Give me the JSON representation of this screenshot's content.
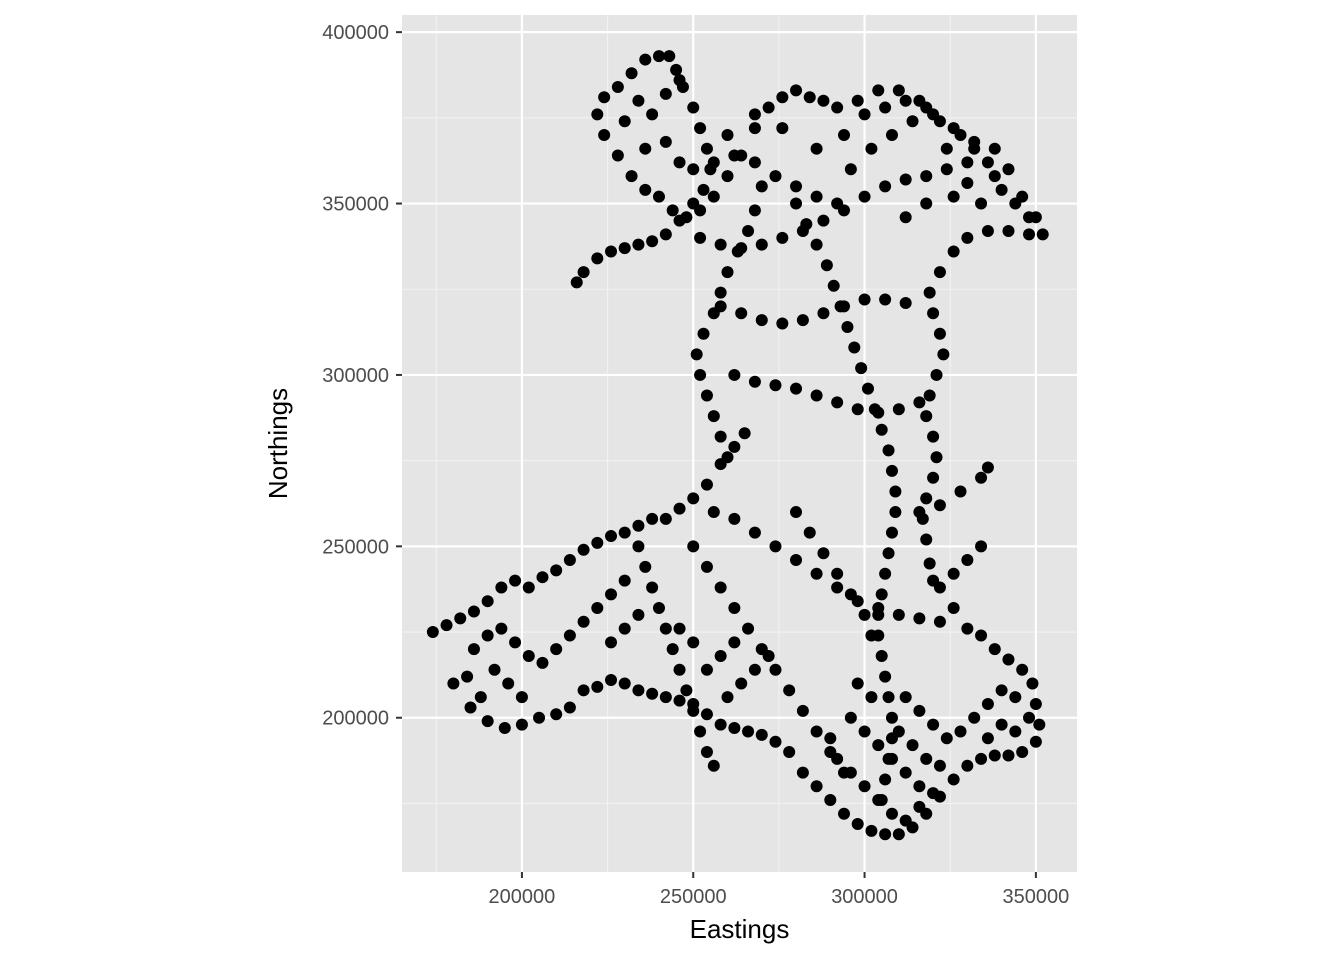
{
  "chart_data": {
    "type": "scatter",
    "title": "",
    "xlabel": "Eastings",
    "ylabel": "Northings",
    "xlim": [
      165000,
      362000
    ],
    "ylim": [
      155000,
      405000
    ],
    "x_ticks": [
      200000,
      250000,
      300000,
      350000
    ],
    "y_ticks": [
      200000,
      250000,
      300000,
      350000,
      400000
    ],
    "x_tick_labels": [
      "200000",
      "250000",
      "300000",
      "350000"
    ],
    "y_tick_labels": [
      "200000",
      "250000",
      "300000",
      "350000",
      "400000"
    ],
    "grid": true,
    "legend": "none",
    "colors": {
      "panel_background": "#e5e5e5",
      "grid_major": "#ffffff",
      "grid_minor": "#f2f2f2",
      "points": "#000000",
      "tick_label": "#4d4d4d",
      "axis_title": "#000000"
    },
    "points": [
      [
        174000,
        225000
      ],
      [
        178000,
        227000
      ],
      [
        182000,
        229000
      ],
      [
        186000,
        231000
      ],
      [
        190000,
        234000
      ],
      [
        194000,
        238000
      ],
      [
        198000,
        240000
      ],
      [
        202000,
        238000
      ],
      [
        206000,
        241000
      ],
      [
        210000,
        243000
      ],
      [
        214000,
        246000
      ],
      [
        218000,
        249000
      ],
      [
        222000,
        251000
      ],
      [
        226000,
        253000
      ],
      [
        230000,
        254000
      ],
      [
        234000,
        256000
      ],
      [
        238000,
        258000
      ],
      [
        242000,
        258000
      ],
      [
        246000,
        261000
      ],
      [
        250000,
        264000
      ],
      [
        254000,
        268000
      ],
      [
        258000,
        274000
      ],
      [
        262000,
        279000
      ],
      [
        265000,
        283000
      ],
      [
        180000,
        210000
      ],
      [
        185000,
        203000
      ],
      [
        190000,
        199000
      ],
      [
        195000,
        197000
      ],
      [
        200000,
        198000
      ],
      [
        205000,
        200000
      ],
      [
        210000,
        201000
      ],
      [
        214000,
        203000
      ],
      [
        218000,
        208000
      ],
      [
        222000,
        209000
      ],
      [
        226000,
        211000
      ],
      [
        230000,
        210000
      ],
      [
        234000,
        208000
      ],
      [
        238000,
        207000
      ],
      [
        242000,
        206000
      ],
      [
        246000,
        205000
      ],
      [
        250000,
        204000
      ],
      [
        254000,
        201000
      ],
      [
        258000,
        198000
      ],
      [
        262000,
        197000
      ],
      [
        266000,
        196000
      ],
      [
        270000,
        195000
      ],
      [
        274000,
        193000
      ],
      [
        278000,
        190000
      ],
      [
        282000,
        184000
      ],
      [
        286000,
        180000
      ],
      [
        290000,
        176000
      ],
      [
        294000,
        172000
      ],
      [
        298000,
        169000
      ],
      [
        302000,
        167000
      ],
      [
        306000,
        166000
      ],
      [
        310000,
        166000
      ],
      [
        314000,
        168000
      ],
      [
        318000,
        172000
      ],
      [
        322000,
        177000
      ],
      [
        326000,
        182000
      ],
      [
        330000,
        186000
      ],
      [
        334000,
        188000
      ],
      [
        338000,
        189000
      ],
      [
        342000,
        189000
      ],
      [
        346000,
        190000
      ],
      [
        350000,
        193000
      ],
      [
        351000,
        198000
      ],
      [
        350000,
        204000
      ],
      [
        349000,
        210000
      ],
      [
        346000,
        214000
      ],
      [
        342000,
        217000
      ],
      [
        338000,
        220000
      ],
      [
        334000,
        224000
      ],
      [
        330000,
        226000
      ],
      [
        326000,
        232000
      ],
      [
        322000,
        238000
      ],
      [
        319000,
        245000
      ],
      [
        318000,
        252000
      ],
      [
        317000,
        258000
      ],
      [
        318000,
        264000
      ],
      [
        320000,
        270000
      ],
      [
        321000,
        276000
      ],
      [
        320000,
        282000
      ],
      [
        318000,
        288000
      ],
      [
        319000,
        294000
      ],
      [
        321000,
        300000
      ],
      [
        323000,
        306000
      ],
      [
        322000,
        312000
      ],
      [
        320000,
        318000
      ],
      [
        319000,
        324000
      ],
      [
        322000,
        330000
      ],
      [
        326000,
        336000
      ],
      [
        330000,
        340000
      ],
      [
        336000,
        342000
      ],
      [
        342000,
        342000
      ],
      [
        348000,
        341000
      ],
      [
        352000,
        341000
      ],
      [
        348000,
        346000
      ],
      [
        344000,
        350000
      ],
      [
        340000,
        354000
      ],
      [
        338000,
        358000
      ],
      [
        336000,
        362000
      ],
      [
        332000,
        366000
      ],
      [
        328000,
        370000
      ],
      [
        322000,
        374000
      ],
      [
        316000,
        380000
      ],
      [
        310000,
        383000
      ],
      [
        304000,
        383000
      ],
      [
        298000,
        380000
      ],
      [
        292000,
        378000
      ],
      [
        288000,
        380000
      ],
      [
        284000,
        381000
      ],
      [
        280000,
        383000
      ],
      [
        276000,
        381000
      ],
      [
        272000,
        378000
      ],
      [
        268000,
        372000
      ],
      [
        264000,
        364000
      ],
      [
        260000,
        358000
      ],
      [
        256000,
        352000
      ],
      [
        252000,
        348000
      ],
      [
        248000,
        346000
      ],
      [
        244000,
        348000
      ],
      [
        240000,
        352000
      ],
      [
        236000,
        354000
      ],
      [
        232000,
        358000
      ],
      [
        228000,
        364000
      ],
      [
        224000,
        370000
      ],
      [
        222000,
        376000
      ],
      [
        224000,
        381000
      ],
      [
        228000,
        384000
      ],
      [
        232000,
        388000
      ],
      [
        236000,
        392000
      ],
      [
        240000,
        393000
      ],
      [
        243000,
        393000
      ],
      [
        245000,
        389000
      ],
      [
        247000,
        384000
      ],
      [
        250000,
        378000
      ],
      [
        252000,
        372000
      ],
      [
        254000,
        366000
      ],
      [
        255000,
        360000
      ],
      [
        253000,
        354000
      ],
      [
        250000,
        350000
      ],
      [
        246000,
        345000
      ],
      [
        242000,
        341000
      ],
      [
        238000,
        339000
      ],
      [
        234000,
        338000
      ],
      [
        230000,
        337000
      ],
      [
        226000,
        336000
      ],
      [
        222000,
        334000
      ],
      [
        218000,
        330000
      ],
      [
        216000,
        327000
      ],
      [
        252000,
        340000
      ],
      [
        258000,
        338000
      ],
      [
        264000,
        337000
      ],
      [
        270000,
        338000
      ],
      [
        276000,
        340000
      ],
      [
        282000,
        342000
      ],
      [
        288000,
        345000
      ],
      [
        294000,
        348000
      ],
      [
        300000,
        352000
      ],
      [
        306000,
        355000
      ],
      [
        312000,
        357000
      ],
      [
        318000,
        358000
      ],
      [
        324000,
        360000
      ],
      [
        330000,
        362000
      ],
      [
        250000,
        360000
      ],
      [
        256000,
        362000
      ],
      [
        262000,
        364000
      ],
      [
        268000,
        362000
      ],
      [
        274000,
        358000
      ],
      [
        280000,
        355000
      ],
      [
        286000,
        352000
      ],
      [
        292000,
        350000
      ],
      [
        270000,
        355000
      ],
      [
        268000,
        348000
      ],
      [
        266000,
        342000
      ],
      [
        263000,
        336000
      ],
      [
        260000,
        330000
      ],
      [
        258000,
        324000
      ],
      [
        256000,
        318000
      ],
      [
        253000,
        312000
      ],
      [
        251000,
        306000
      ],
      [
        252000,
        300000
      ],
      [
        254000,
        294000
      ],
      [
        256000,
        288000
      ],
      [
        258000,
        282000
      ],
      [
        260000,
        276000
      ],
      [
        280000,
        350000
      ],
      [
        283000,
        344000
      ],
      [
        286000,
        338000
      ],
      [
        289000,
        332000
      ],
      [
        291000,
        326000
      ],
      [
        293000,
        320000
      ],
      [
        295000,
        314000
      ],
      [
        297000,
        308000
      ],
      [
        299000,
        302000
      ],
      [
        301000,
        296000
      ],
      [
        303000,
        290000
      ],
      [
        305000,
        284000
      ],
      [
        307000,
        278000
      ],
      [
        308000,
        272000
      ],
      [
        309000,
        266000
      ],
      [
        309000,
        260000
      ],
      [
        308000,
        254000
      ],
      [
        307000,
        248000
      ],
      [
        306000,
        242000
      ],
      [
        305000,
        236000
      ],
      [
        304000,
        230000
      ],
      [
        304000,
        224000
      ],
      [
        305000,
        218000
      ],
      [
        306000,
        212000
      ],
      [
        307000,
        206000
      ],
      [
        308000,
        200000
      ],
      [
        308000,
        194000
      ],
      [
        307000,
        188000
      ],
      [
        306000,
        182000
      ],
      [
        305000,
        176000
      ],
      [
        258000,
        320000
      ],
      [
        264000,
        318000
      ],
      [
        270000,
        316000
      ],
      [
        276000,
        315000
      ],
      [
        282000,
        316000
      ],
      [
        288000,
        318000
      ],
      [
        294000,
        320000
      ],
      [
        300000,
        322000
      ],
      [
        306000,
        322000
      ],
      [
        312000,
        321000
      ],
      [
        262000,
        300000
      ],
      [
        268000,
        298000
      ],
      [
        274000,
        297000
      ],
      [
        280000,
        296000
      ],
      [
        286000,
        294000
      ],
      [
        292000,
        292000
      ],
      [
        298000,
        290000
      ],
      [
        304000,
        289000
      ],
      [
        310000,
        290000
      ],
      [
        316000,
        292000
      ],
      [
        256000,
        260000
      ],
      [
        262000,
        258000
      ],
      [
        268000,
        254000
      ],
      [
        274000,
        250000
      ],
      [
        280000,
        246000
      ],
      [
        286000,
        242000
      ],
      [
        292000,
        238000
      ],
      [
        298000,
        234000
      ],
      [
        304000,
        232000
      ],
      [
        310000,
        230000
      ],
      [
        316000,
        229000
      ],
      [
        322000,
        228000
      ],
      [
        234000,
        250000
      ],
      [
        236000,
        244000
      ],
      [
        238000,
        238000
      ],
      [
        240000,
        232000
      ],
      [
        242000,
        226000
      ],
      [
        244000,
        220000
      ],
      [
        246000,
        214000
      ],
      [
        248000,
        208000
      ],
      [
        250000,
        202000
      ],
      [
        252000,
        196000
      ],
      [
        254000,
        190000
      ],
      [
        256000,
        186000
      ],
      [
        250000,
        250000
      ],
      [
        254000,
        244000
      ],
      [
        258000,
        238000
      ],
      [
        262000,
        232000
      ],
      [
        266000,
        226000
      ],
      [
        270000,
        220000
      ],
      [
        274000,
        214000
      ],
      [
        278000,
        208000
      ],
      [
        282000,
        202000
      ],
      [
        286000,
        196000
      ],
      [
        290000,
        190000
      ],
      [
        294000,
        184000
      ],
      [
        280000,
        260000
      ],
      [
        284000,
        254000
      ],
      [
        288000,
        248000
      ],
      [
        292000,
        242000
      ],
      [
        296000,
        236000
      ],
      [
        300000,
        230000
      ],
      [
        302000,
        224000
      ],
      [
        316000,
        260000
      ],
      [
        322000,
        262000
      ],
      [
        328000,
        266000
      ],
      [
        334000,
        270000
      ],
      [
        336000,
        273000
      ],
      [
        320000,
        240000
      ],
      [
        326000,
        242000
      ],
      [
        330000,
        246000
      ],
      [
        334000,
        250000
      ],
      [
        296000,
        360000
      ],
      [
        302000,
        366000
      ],
      [
        308000,
        370000
      ],
      [
        314000,
        374000
      ],
      [
        320000,
        376000
      ],
      [
        326000,
        372000
      ],
      [
        332000,
        368000
      ],
      [
        338000,
        366000
      ],
      [
        342000,
        360000
      ],
      [
        346000,
        352000
      ],
      [
        350000,
        346000
      ],
      [
        296000,
        200000
      ],
      [
        300000,
        196000
      ],
      [
        304000,
        192000
      ],
      [
        308000,
        188000
      ],
      [
        312000,
        184000
      ],
      [
        316000,
        180000
      ],
      [
        320000,
        178000
      ],
      [
        296000,
        184000
      ],
      [
        300000,
        180000
      ],
      [
        304000,
        176000
      ],
      [
        308000,
        172000
      ],
      [
        312000,
        170000
      ],
      [
        316000,
        174000
      ],
      [
        292000,
        188000
      ],
      [
        290000,
        194000
      ],
      [
        310000,
        196000
      ],
      [
        314000,
        192000
      ],
      [
        318000,
        188000
      ],
      [
        322000,
        186000
      ],
      [
        302000,
        206000
      ],
      [
        298000,
        210000
      ],
      [
        312000,
        206000
      ],
      [
        316000,
        202000
      ],
      [
        320000,
        198000
      ],
      [
        324000,
        194000
      ],
      [
        328000,
        196000
      ],
      [
        332000,
        200000
      ],
      [
        336000,
        204000
      ],
      [
        340000,
        208000
      ],
      [
        344000,
        206000
      ],
      [
        348000,
        200000
      ],
      [
        344000,
        196000
      ],
      [
        340000,
        198000
      ],
      [
        336000,
        194000
      ],
      [
        186000,
        220000
      ],
      [
        190000,
        224000
      ],
      [
        194000,
        226000
      ],
      [
        198000,
        222000
      ],
      [
        202000,
        218000
      ],
      [
        206000,
        216000
      ],
      [
        210000,
        220000
      ],
      [
        214000,
        224000
      ],
      [
        218000,
        228000
      ],
      [
        222000,
        232000
      ],
      [
        226000,
        236000
      ],
      [
        230000,
        240000
      ],
      [
        226000,
        222000
      ],
      [
        230000,
        226000
      ],
      [
        234000,
        230000
      ],
      [
        200000,
        206000
      ],
      [
        196000,
        210000
      ],
      [
        192000,
        214000
      ],
      [
        188000,
        206000
      ],
      [
        184000,
        212000
      ],
      [
        254000,
        214000
      ],
      [
        258000,
        218000
      ],
      [
        262000,
        222000
      ],
      [
        250000,
        222000
      ],
      [
        246000,
        226000
      ],
      [
        260000,
        206000
      ],
      [
        264000,
        210000
      ],
      [
        268000,
        214000
      ],
      [
        272000,
        218000
      ],
      [
        260000,
        370000
      ],
      [
        268000,
        376000
      ],
      [
        276000,
        372000
      ],
      [
        286000,
        366000
      ],
      [
        294000,
        370000
      ],
      [
        300000,
        376000
      ],
      [
        306000,
        378000
      ],
      [
        312000,
        380000
      ],
      [
        318000,
        378000
      ],
      [
        324000,
        366000
      ],
      [
        330000,
        356000
      ],
      [
        334000,
        350000
      ],
      [
        326000,
        352000
      ],
      [
        318000,
        350000
      ],
      [
        312000,
        346000
      ],
      [
        238000,
        376000
      ],
      [
        242000,
        382000
      ],
      [
        246000,
        386000
      ],
      [
        234000,
        380000
      ],
      [
        230000,
        374000
      ],
      [
        236000,
        366000
      ],
      [
        242000,
        368000
      ],
      [
        246000,
        362000
      ]
    ]
  }
}
